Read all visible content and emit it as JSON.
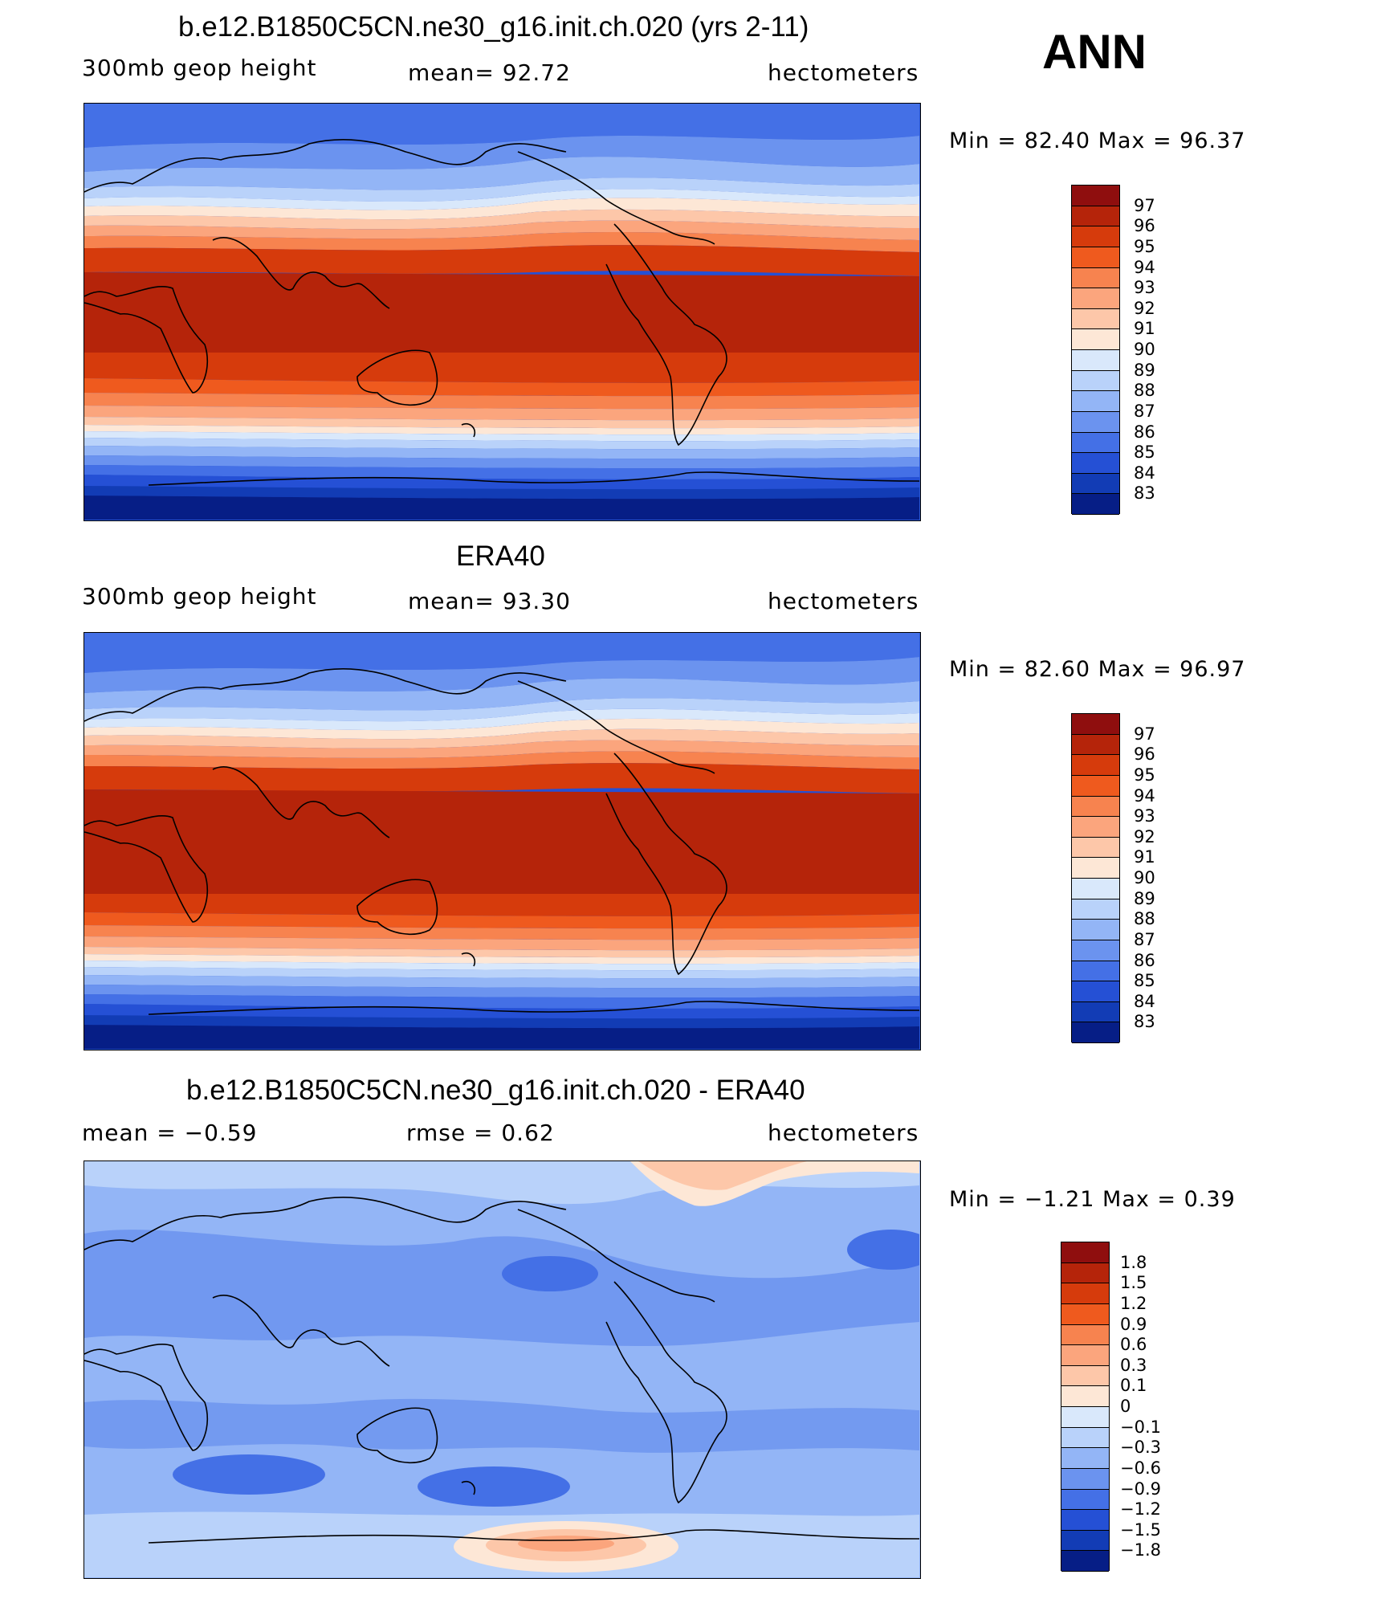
{
  "season": "ANN",
  "panels": [
    {
      "title": "b.e12.B1850C5CN.ne30_g16.init.ch.020 (yrs 2-11)",
      "left_label": "300mb  geop  height",
      "center_label": "mean=   92.72",
      "right_label": "hectometers",
      "minmax": "Min  =    82.40  Max  =    96.37",
      "colorbar": {
        "labels": [
          "97",
          "96",
          "95",
          "94",
          "93",
          "92",
          "91",
          "90",
          "89",
          "88",
          "87",
          "86",
          "85",
          "84",
          "83"
        ],
        "colors": [
          "#8f0e0e",
          "#b5240a",
          "#d63b0c",
          "#ef5a1e",
          "#f7834f",
          "#fba57d",
          "#fdc7a9",
          "#fde7d6",
          "#d9e8fb",
          "#b9d2fa",
          "#93b5f6",
          "#6b93ef",
          "#4470e6",
          "#2550d5",
          "#123cb5",
          "#061e86"
        ]
      },
      "stats": {
        "min": 82.4,
        "max": 96.37,
        "mean": 92.72,
        "units": "hectometers"
      }
    },
    {
      "title": "ERA40",
      "left_label": "300mb  geop  height",
      "center_label": "mean=   93.30",
      "right_label": "hectometers",
      "minmax": "Min  =    82.60  Max  =    96.97",
      "colorbar": {
        "labels": [
          "97",
          "96",
          "95",
          "94",
          "93",
          "92",
          "91",
          "90",
          "89",
          "88",
          "87",
          "86",
          "85",
          "84",
          "83"
        ],
        "colors": [
          "#8f0e0e",
          "#b5240a",
          "#d63b0c",
          "#ef5a1e",
          "#f7834f",
          "#fba57d",
          "#fdc7a9",
          "#fde7d6",
          "#d9e8fb",
          "#b9d2fa",
          "#93b5f6",
          "#6b93ef",
          "#4470e6",
          "#2550d5",
          "#123cb5",
          "#061e86"
        ]
      },
      "stats": {
        "min": 82.6,
        "max": 96.97,
        "mean": 93.3,
        "units": "hectometers"
      }
    },
    {
      "title": "b.e12.B1850C5CN.ne30_g16.init.ch.020 - ERA40",
      "left_label": "mean  =    −0.59",
      "center_label": "rmse  =     0.62",
      "right_label": "hectometers",
      "minmax": "Min  =   −1.21  Max  =     0.39",
      "colorbar": {
        "labels": [
          "1.8",
          "1.5",
          "1.2",
          "0.9",
          "0.6",
          "0.3",
          "0.1",
          "0",
          "−0.1",
          "−0.3",
          "−0.6",
          "−0.9",
          "−1.2",
          "−1.5",
          "−1.8"
        ],
        "colors": [
          "#8f0e0e",
          "#b5240a",
          "#d63b0c",
          "#ef5a1e",
          "#f7834f",
          "#fba57d",
          "#fdc7a9",
          "#fde7d6",
          "#d9e8fb",
          "#b9d2fa",
          "#93b5f6",
          "#6b93ef",
          "#4470e6",
          "#2550d5",
          "#123cb5",
          "#061e86"
        ]
      },
      "stats": {
        "min": -1.21,
        "max": 0.39,
        "mean": -0.59,
        "rmse": 0.62,
        "units": "hectometers"
      }
    }
  ]
}
